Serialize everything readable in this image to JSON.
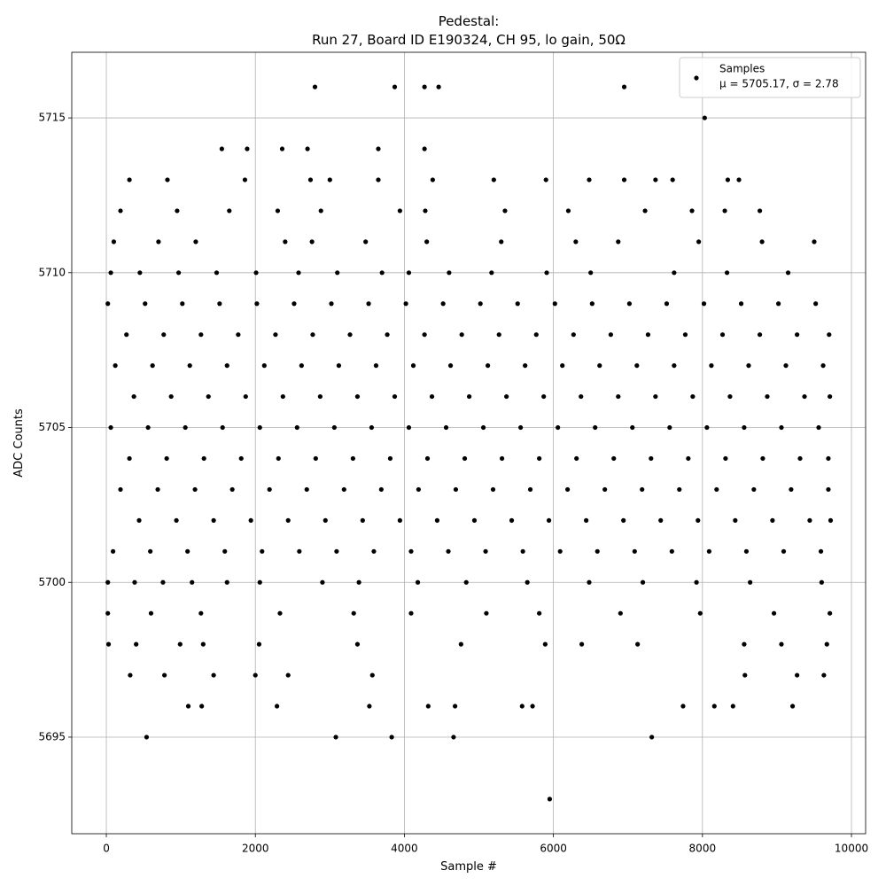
{
  "chart_data": {
    "type": "scatter",
    "title": "Pedestal:",
    "subtitle": "Run 27, Board ID E190324, CH 95, lo gain, 50Ω",
    "x_label": "Sample #",
    "y_label": "ADC Counts",
    "legend": "upper right",
    "grid": true,
    "xlim": [
      -464,
      10190
    ],
    "ylim": [
      5691.88,
      5717.12
    ],
    "xticks": [
      0,
      2000,
      4000,
      6000,
      8000,
      10000
    ],
    "yticks": [
      5695,
      5700,
      5705,
      5710,
      5715
    ],
    "series": [
      {
        "name": "Samples",
        "annotation": "μ = 5705.17, σ = 2.78",
        "color": "#000000",
        "x": [
          20,
          520,
          1020,
          1520,
          2020,
          2520,
          3020,
          3520,
          4020,
          4520,
          5020,
          5520,
          6020,
          6520,
          7020,
          7520,
          8020,
          8520,
          9020,
          9520,
          270,
          770,
          1270,
          1770,
          2270,
          2770,
          3270,
          3770,
          4270,
          4770,
          5270,
          5770,
          6270,
          6770,
          7270,
          7770,
          8270,
          8770,
          9270,
          9700,
          120,
          620,
          1120,
          1620,
          2120,
          2620,
          3120,
          3620,
          4120,
          4620,
          5120,
          5620,
          6120,
          6620,
          7120,
          7620,
          8120,
          8620,
          9120,
          9620,
          370,
          870,
          1370,
          1870,
          2370,
          2870,
          3370,
          3870,
          4370,
          4870,
          5370,
          5870,
          6370,
          6870,
          7370,
          7870,
          8370,
          8870,
          9370,
          9710,
          60,
          560,
          1060,
          1560,
          2060,
          2560,
          3060,
          3560,
          4060,
          4560,
          5060,
          5560,
          6060,
          6560,
          7060,
          7560,
          8060,
          8560,
          9060,
          9560,
          310,
          810,
          1310,
          1810,
          2310,
          2810,
          3310,
          3810,
          4310,
          4810,
          5310,
          5810,
          6310,
          6810,
          7310,
          7810,
          8310,
          8810,
          9310,
          9690,
          190,
          690,
          1190,
          1690,
          2190,
          2690,
          3190,
          3690,
          4190,
          4690,
          5190,
          5690,
          6190,
          6690,
          7190,
          7690,
          8190,
          8690,
          9190,
          9690,
          440,
          940,
          1440,
          1940,
          2440,
          2940,
          3440,
          3940,
          4440,
          4940,
          5440,
          5940,
          6440,
          6940,
          7440,
          7940,
          8440,
          8940,
          9440,
          9720,
          90,
          590,
          1090,
          1590,
          2090,
          2590,
          3090,
          3590,
          4090,
          4590,
          5090,
          5590,
          6090,
          6590,
          7090,
          7590,
          8090,
          8590,
          9090,
          9590,
          20,
          380,
          760,
          1150,
          1620,
          2060,
          2900,
          3390,
          4180,
          4830,
          5650,
          6480,
          7200,
          7920,
          8640,
          9600,
          60,
          450,
          970,
          1480,
          2010,
          2580,
          3100,
          3700,
          4060,
          4600,
          5170,
          5910,
          6500,
          7620,
          8330,
          9150,
          20,
          600,
          1270,
          2330,
          3320,
          4090,
          5100,
          5810,
          6900,
          7970,
          8960,
          9710,
          100,
          700,
          1200,
          2400,
          2760,
          3480,
          4300,
          5300,
          6300,
          6870,
          7950,
          8800,
          9500,
          30,
          400,
          990,
          1300,
          2050,
          3370,
          4760,
          5890,
          6380,
          7130,
          8560,
          9060,
          9670,
          190,
          950,
          1650,
          2300,
          2880,
          3940,
          4280,
          5350,
          6200,
          7230,
          7860,
          8300,
          8770,
          320,
          780,
          1440,
          2000,
          2440,
          3570,
          8570,
          9270,
          9630,
          310,
          820,
          1860,
          2740,
          3000,
          3650,
          4380,
          5200,
          5900,
          6480,
          6950,
          7370,
          7600,
          8340,
          8490,
          1100,
          1280,
          2290,
          3530,
          4320,
          4680,
          5580,
          5720,
          7740,
          8160,
          8410,
          9210,
          1550,
          1890,
          2360,
          2700,
          3650,
          4270,
          540,
          3080,
          3830,
          4660,
          7320,
          8030,
          2800,
          3870,
          4270,
          4460,
          6950,
          5950
        ],
        "values": [
          5709,
          5709,
          5709,
          5709,
          5709,
          5709,
          5709,
          5709,
          5709,
          5709,
          5709,
          5709,
          5709,
          5709,
          5709,
          5709,
          5709,
          5709,
          5709,
          5709,
          5708,
          5708,
          5708,
          5708,
          5708,
          5708,
          5708,
          5708,
          5708,
          5708,
          5708,
          5708,
          5708,
          5708,
          5708,
          5708,
          5708,
          5708,
          5708,
          5708,
          5707,
          5707,
          5707,
          5707,
          5707,
          5707,
          5707,
          5707,
          5707,
          5707,
          5707,
          5707,
          5707,
          5707,
          5707,
          5707,
          5707,
          5707,
          5707,
          5707,
          5706,
          5706,
          5706,
          5706,
          5706,
          5706,
          5706,
          5706,
          5706,
          5706,
          5706,
          5706,
          5706,
          5706,
          5706,
          5706,
          5706,
          5706,
          5706,
          5706,
          5705,
          5705,
          5705,
          5705,
          5705,
          5705,
          5705,
          5705,
          5705,
          5705,
          5705,
          5705,
          5705,
          5705,
          5705,
          5705,
          5705,
          5705,
          5705,
          5705,
          5704,
          5704,
          5704,
          5704,
          5704,
          5704,
          5704,
          5704,
          5704,
          5704,
          5704,
          5704,
          5704,
          5704,
          5704,
          5704,
          5704,
          5704,
          5704,
          5704,
          5703,
          5703,
          5703,
          5703,
          5703,
          5703,
          5703,
          5703,
          5703,
          5703,
          5703,
          5703,
          5703,
          5703,
          5703,
          5703,
          5703,
          5703,
          5703,
          5703,
          5702,
          5702,
          5702,
          5702,
          5702,
          5702,
          5702,
          5702,
          5702,
          5702,
          5702,
          5702,
          5702,
          5702,
          5702,
          5702,
          5702,
          5702,
          5702,
          5702,
          5701,
          5701,
          5701,
          5701,
          5701,
          5701,
          5701,
          5701,
          5701,
          5701,
          5701,
          5701,
          5701,
          5701,
          5701,
          5701,
          5701,
          5701,
          5701,
          5701,
          5700,
          5700,
          5700,
          5700,
          5700,
          5700,
          5700,
          5700,
          5700,
          5700,
          5700,
          5700,
          5700,
          5700,
          5700,
          5700,
          5710,
          5710,
          5710,
          5710,
          5710,
          5710,
          5710,
          5710,
          5710,
          5710,
          5710,
          5710,
          5710,
          5710,
          5710,
          5710,
          5699,
          5699,
          5699,
          5699,
          5699,
          5699,
          5699,
          5699,
          5699,
          5699,
          5699,
          5699,
          5711,
          5711,
          5711,
          5711,
          5711,
          5711,
          5711,
          5711,
          5711,
          5711,
          5711,
          5711,
          5711,
          5698,
          5698,
          5698,
          5698,
          5698,
          5698,
          5698,
          5698,
          5698,
          5698,
          5698,
          5698,
          5698,
          5712,
          5712,
          5712,
          5712,
          5712,
          5712,
          5712,
          5712,
          5712,
          5712,
          5712,
          5712,
          5712,
          5697,
          5697,
          5697,
          5697,
          5697,
          5697,
          5697,
          5697,
          5697,
          5713,
          5713,
          5713,
          5713,
          5713,
          5713,
          5713,
          5713,
          5713,
          5713,
          5713,
          5713,
          5713,
          5713,
          5713,
          5696,
          5696,
          5696,
          5696,
          5696,
          5696,
          5696,
          5696,
          5696,
          5696,
          5696,
          5696,
          5714,
          5714,
          5714,
          5714,
          5714,
          5714,
          5695,
          5695,
          5695,
          5695,
          5695,
          5715,
          5716,
          5716,
          5716,
          5716,
          5716,
          5693
        ]
      }
    ]
  }
}
